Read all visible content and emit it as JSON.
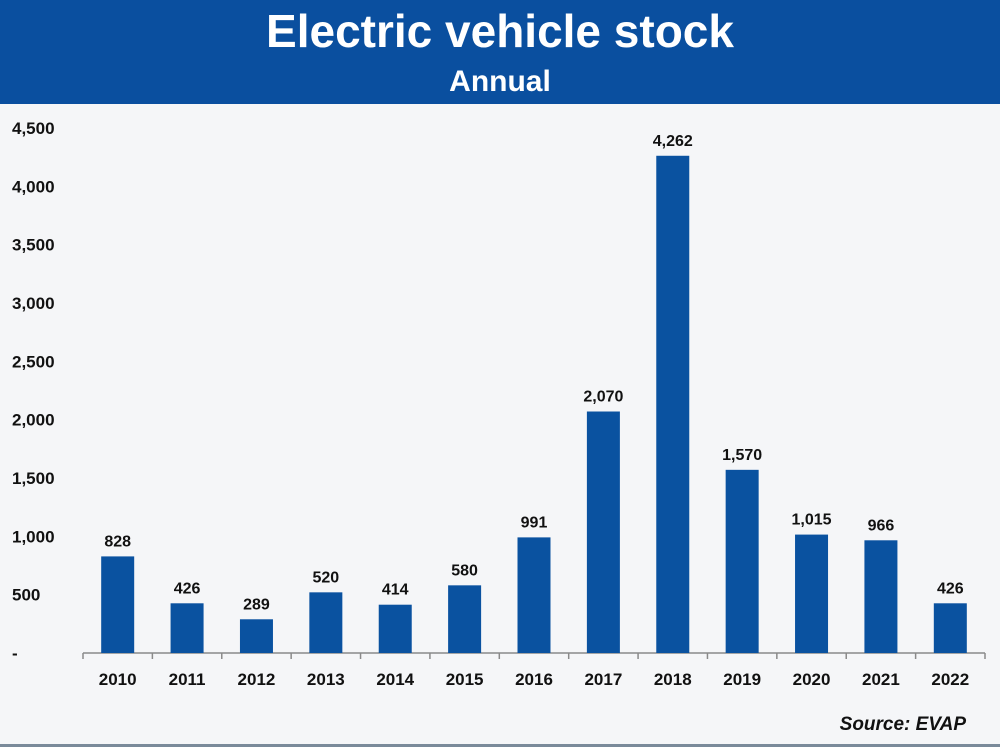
{
  "header": {
    "title": "Electric vehicle stock",
    "subtitle": "Annual"
  },
  "source": "Source: EVAP",
  "colors": {
    "header_bg": "#0a4f9f",
    "bar": "#0a52a0",
    "background": "#f5f6f8"
  },
  "chart_data": {
    "type": "bar",
    "title": "Electric vehicle stock",
    "subtitle": "Annual",
    "categories": [
      "2010",
      "2011",
      "2012",
      "2013",
      "2014",
      "2015",
      "2016",
      "2017",
      "2018",
      "2019",
      "2020",
      "2021",
      "2022"
    ],
    "values": [
      828,
      426,
      289,
      520,
      414,
      580,
      991,
      2070,
      4262,
      1570,
      1015,
      966,
      426
    ],
    "value_labels": [
      "828",
      "426",
      "289",
      "520",
      "414",
      "580",
      "991",
      "2,070",
      "4,262",
      "1,570",
      "1,015",
      "966",
      "426"
    ],
    "y_ticks": [
      0,
      500,
      1000,
      1500,
      2000,
      2500,
      3000,
      3500,
      4000,
      4500
    ],
    "y_tick_labels": [
      "-",
      "500",
      "1,000",
      "1,500",
      "2,000",
      "2,500",
      "3,000",
      "3,500",
      "4,000",
      "4,500"
    ],
    "ylim": [
      0,
      4500
    ],
    "xlabel": "",
    "ylabel": "",
    "grid": false,
    "legend": "none"
  }
}
